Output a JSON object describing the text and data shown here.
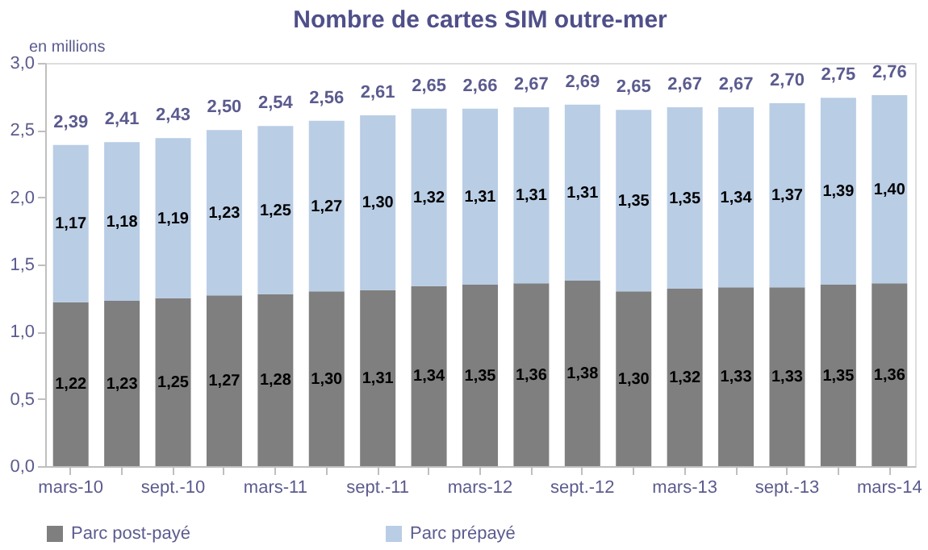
{
  "chart_data": {
    "type": "bar",
    "title": "Nombre de cartes SIM  outre-mer",
    "ylabel": "en millions",
    "categories": [
      "mars-10",
      null,
      "sept.-10",
      null,
      "mars-11",
      null,
      "sept.-11",
      null,
      "mars-12",
      null,
      "sept.-12",
      null,
      "mars-13",
      null,
      "sept.-13",
      null,
      "mars-14"
    ],
    "stacked": true,
    "series": [
      {
        "name": "Parc post-payé",
        "color": "#7f7f7f",
        "values": [
          1.22,
          1.23,
          1.25,
          1.27,
          1.28,
          1.3,
          1.31,
          1.34,
          1.35,
          1.36,
          1.38,
          1.3,
          1.32,
          1.33,
          1.33,
          1.35,
          1.36
        ],
        "value_labels": [
          "1,22",
          "1,23",
          "1,25",
          "1,27",
          "1,28",
          "1,30",
          "1,31",
          "1,34",
          "1,35",
          "1,36",
          "1,38",
          "1,30",
          "1,32",
          "1,33",
          "1,33",
          "1,35",
          "1,36"
        ]
      },
      {
        "name": "Parc prépayé",
        "color": "#b9cde5",
        "values": [
          1.17,
          1.18,
          1.19,
          1.23,
          1.25,
          1.27,
          1.3,
          1.32,
          1.31,
          1.31,
          1.31,
          1.35,
          1.35,
          1.34,
          1.37,
          1.39,
          1.4
        ],
        "value_labels": [
          "1,17",
          "1,18",
          "1,19",
          "1,23",
          "1,25",
          "1,27",
          "1,30",
          "1,32",
          "1,31",
          "1,31",
          "1,31",
          "1,35",
          "1,35",
          "1,34",
          "1,37",
          "1,39",
          "1,40"
        ]
      }
    ],
    "totals": [
      "2,39",
      "2,41",
      "2,43",
      "2,50",
      "2,54",
      "2,56",
      "2,61",
      "2,65",
      "2,66",
      "2,67",
      "2,69",
      "2,65",
      "2,67",
      "2,67",
      "2,70",
      "2,75",
      "2,76"
    ],
    "ylim": [
      0,
      3
    ],
    "yticks": [
      {
        "value": 0,
        "label": "0,0"
      },
      {
        "value": 0.5,
        "label": "0,5"
      },
      {
        "value": 1,
        "label": "1,0"
      },
      {
        "value": 1.5,
        "label": "1,5"
      },
      {
        "value": 2,
        "label": "2,0"
      },
      {
        "value": 2.5,
        "label": "2,5"
      },
      {
        "value": 3,
        "label": "3,0"
      }
    ],
    "grid": false,
    "legend": "bottom"
  }
}
